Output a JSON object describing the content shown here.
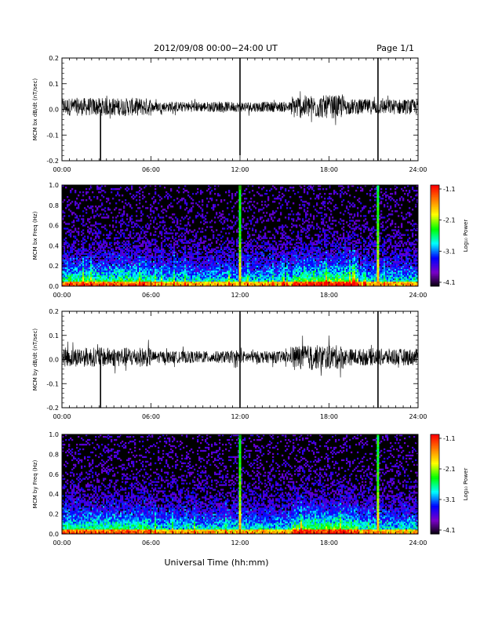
{
  "header": {
    "title": "2012/09/08  00:00−24:00 UT",
    "page": "Page 1/1"
  },
  "xaxis": {
    "label": "Universal Time (hh:mm)",
    "ticks": [
      "00:00",
      "06:00",
      "12:00",
      "18:00",
      "24:00"
    ]
  },
  "colorbar": {
    "label": "Log₁₀ Power",
    "ticks": [
      "-1.1",
      "-2.1",
      "-3.1",
      "-4.1"
    ],
    "colors": [
      "#000000",
      "#7a00c8",
      "#0000ff",
      "#00ffff",
      "#00ff00",
      "#ffff00",
      "#ff8000",
      "#ff0000"
    ]
  },
  "chart_data": [
    {
      "type": "line",
      "ylabel": "MCM bx dB/dt (nT/sec)",
      "ylim": [
        -0.2,
        0.2
      ],
      "yticks": [
        "0.2",
        "0.1",
        "0.0",
        "-0.1",
        "-0.2"
      ],
      "xlim_hours": [
        0,
        24
      ],
      "series_color": "#000000",
      "noise_envelope": [
        {
          "x": [
            0,
            6
          ],
          "amplitude": 0.035
        },
        {
          "x": [
            6,
            15.5
          ],
          "amplitude": 0.02
        },
        {
          "x": [
            15.5,
            19
          ],
          "amplitude": 0.045
        },
        {
          "x": [
            19,
            24
          ],
          "amplitude": 0.03
        }
      ],
      "spikes": [
        {
          "x": 2.6,
          "ymin": -0.2,
          "ymax": 0.0
        },
        {
          "x": 12.0,
          "ymin": -0.18,
          "ymax": 0.2
        },
        {
          "x": 21.3,
          "ymin": -0.2,
          "ymax": 0.2
        }
      ]
    },
    {
      "type": "heatmap",
      "ylabel": "MCM bx Freq (Hz)",
      "ylim": [
        0,
        1.0
      ],
      "yticks": [
        "1.0",
        "0.8",
        "0.6",
        "0.4",
        "0.2",
        "0.0"
      ],
      "xlim_hours": [
        0,
        24
      ],
      "zlim_log10_power": [
        -4.1,
        -1.1
      ],
      "bright_columns_hours": [
        12.0,
        21.3
      ]
    },
    {
      "type": "line",
      "ylabel": "MCM by dB/dt (nT/sec)",
      "ylim": [
        -0.2,
        0.2
      ],
      "yticks": [
        "0.2",
        "0.1",
        "0.0",
        "-0.1",
        "-0.2"
      ],
      "xlim_hours": [
        0,
        24
      ],
      "series_color": "#000000",
      "noise_envelope": [
        {
          "x": [
            0,
            6
          ],
          "amplitude": 0.04
        },
        {
          "x": [
            6,
            15.5
          ],
          "amplitude": 0.025
        },
        {
          "x": [
            15.5,
            19
          ],
          "amplitude": 0.05
        },
        {
          "x": [
            19,
            24
          ],
          "amplitude": 0.035
        }
      ],
      "spikes": [
        {
          "x": 2.6,
          "ymin": -0.2,
          "ymax": 0.0
        },
        {
          "x": 12.0,
          "ymin": -0.2,
          "ymax": 0.2
        },
        {
          "x": 21.3,
          "ymin": -0.2,
          "ymax": 0.2
        }
      ]
    },
    {
      "type": "heatmap",
      "ylabel": "MCM by Freq (Hz)",
      "ylim": [
        0,
        1.0
      ],
      "yticks": [
        "1.0",
        "0.8",
        "0.6",
        "0.4",
        "0.2",
        "0.0"
      ],
      "xlim_hours": [
        0,
        24
      ],
      "zlim_log10_power": [
        -4.1,
        -1.1
      ],
      "bright_columns_hours": [
        12.0,
        21.3
      ]
    }
  ]
}
